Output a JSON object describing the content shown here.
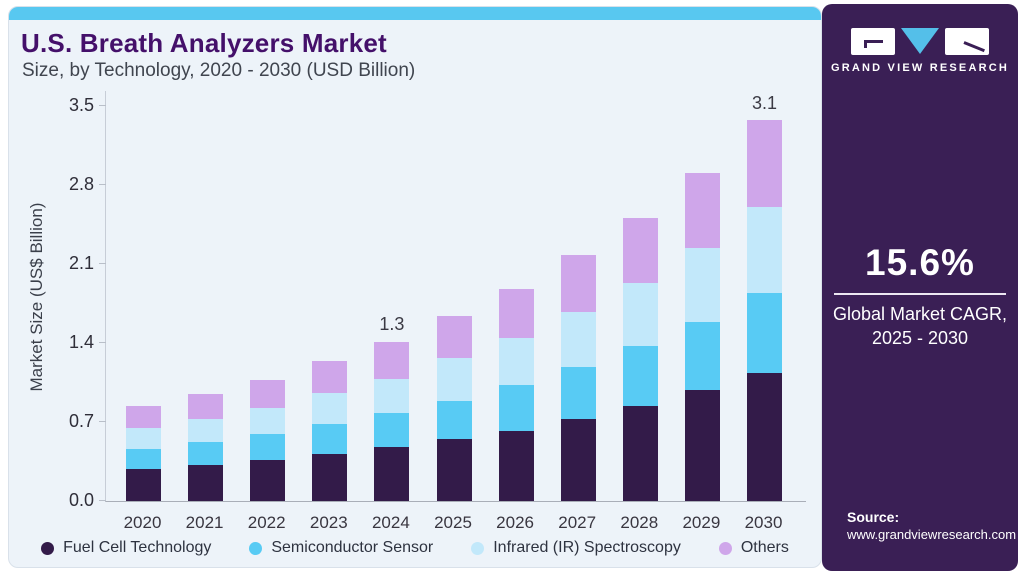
{
  "header": {
    "title": "U.S. Breath Analyzers Market",
    "subtitle": "Size, by Technology, 2020 - 2030 (USD Billion)"
  },
  "chart_data": {
    "type": "bar",
    "stacked": true,
    "title": "U.S. Breath Analyzers Market Size, by Technology, 2020 - 2030 (USD Billion)",
    "categories": [
      "2020",
      "2021",
      "2022",
      "2023",
      "2024",
      "2025",
      "2026",
      "2027",
      "2028",
      "2029",
      "2030"
    ],
    "series": [
      {
        "name": "Fuel Cell Technology",
        "color": "#331b49",
        "values": [
          0.26,
          0.29,
          0.33,
          0.38,
          0.44,
          0.5,
          0.57,
          0.67,
          0.77,
          0.9,
          1.04
        ]
      },
      {
        "name": "Semiconductor Sensor",
        "color": "#58cbf4",
        "values": [
          0.16,
          0.19,
          0.21,
          0.24,
          0.28,
          0.31,
          0.37,
          0.42,
          0.49,
          0.55,
          0.65
        ]
      },
      {
        "name": "Infrared (IR) Spectroscopy",
        "color": "#c2e8fa",
        "values": [
          0.17,
          0.19,
          0.21,
          0.25,
          0.28,
          0.35,
          0.38,
          0.45,
          0.51,
          0.6,
          0.7
        ]
      },
      {
        "name": "Others",
        "color": "#cfa6ea",
        "values": [
          0.18,
          0.2,
          0.23,
          0.26,
          0.3,
          0.34,
          0.4,
          0.46,
          0.53,
          0.61,
          0.71
        ]
      }
    ],
    "totals": [
      0.77,
      0.87,
      0.98,
      1.13,
      1.3,
      1.5,
      1.72,
      2.0,
      2.3,
      2.66,
      3.1
    ],
    "annotations": [
      {
        "category": "2024",
        "label": "1.3"
      },
      {
        "category": "2030",
        "label": "3.1"
      }
    ],
    "ylabel": "Market Size (US$ Billion)",
    "xlabel": "",
    "yticks": [
      "0.0",
      "0.7",
      "1.4",
      "2.1",
      "2.8",
      "3.5"
    ],
    "ylim": [
      0,
      3.5
    ],
    "grid": false,
    "legend_position": "bottom"
  },
  "sidebar": {
    "logo_text": "GRAND VIEW RESEARCH",
    "cagr_value": "15.6%",
    "cagr_label_line1": "Global Market CAGR,",
    "cagr_label_line2": "2025 - 2030",
    "source_label": "Source:",
    "source_url": "www.grandviewresearch.com"
  },
  "colors": {
    "accent_strip": "#58c8f0",
    "card_background": "#edf3f9",
    "panel_background": "#3a1f55",
    "title_text": "#44106a",
    "logo_triangle": "#54bfe9",
    "series_fuel_cell": "#331b49",
    "series_semiconductor": "#58cbf4",
    "series_infrared": "#c2e8fa",
    "series_others": "#cfa6ea"
  }
}
